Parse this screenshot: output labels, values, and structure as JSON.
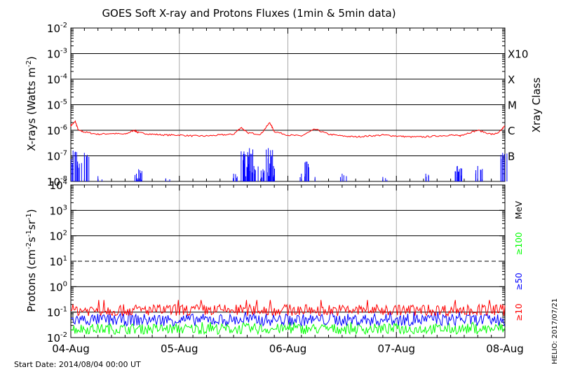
{
  "chart_data": [
    {
      "type": "line",
      "title": "GOES Soft X-ray and Protons Fluxes   (1min & 5min data)",
      "ylabel": {
        "base": "X-rays (Watts m",
        "sup": "-2",
        "tail": ")"
      },
      "y_scale": "log",
      "ylim": [
        1e-08,
        0.01
      ],
      "y_ticks": [
        {
          "value": 1e-08,
          "base": "10",
          "exp": "-8"
        },
        {
          "value": 1e-07,
          "base": "10",
          "exp": "-7"
        },
        {
          "value": 1e-06,
          "base": "10",
          "exp": "-6"
        },
        {
          "value": 1e-05,
          "base": "10",
          "exp": "-5"
        },
        {
          "value": 0.0001,
          "base": "10",
          "exp": "-4"
        },
        {
          "value": 0.001,
          "base": "10",
          "exp": "-3"
        },
        {
          "value": 0.01,
          "base": "10",
          "exp": "-2"
        }
      ],
      "right_axis_title": "Xray Class",
      "right_labels": [
        {
          "label": "X10",
          "value": 0.001
        },
        {
          "label": "X",
          "value": 0.0001
        },
        {
          "label": "M",
          "value": 1e-05
        },
        {
          "label": "C",
          "value": 1e-06
        },
        {
          "label": "B",
          "value": 1e-07
        }
      ],
      "xlim": [
        "2014-08-04",
        "2014-08-08"
      ],
      "x_ticks": [
        "04-Aug",
        "05-Aug",
        "06-Aug",
        "07-Aug",
        "08-Aug"
      ],
      "series": [
        {
          "color": "#ff0000",
          "x": [
            "2014-08-04T00:00",
            "2014-08-04T01:00",
            "2014-08-04T01:40",
            "2014-08-04T03:00",
            "2014-08-04T06:00",
            "2014-08-04T09:00",
            "2014-08-04T12:00",
            "2014-08-04T14:00",
            "2014-08-04T15:00",
            "2014-08-04T18:00",
            "2014-08-04T21:00",
            "2014-08-05T00:00",
            "2014-08-05T03:00",
            "2014-08-05T06:00",
            "2014-08-05T09:00",
            "2014-08-05T12:00",
            "2014-08-05T13:40",
            "2014-08-05T15:00",
            "2014-08-05T18:00",
            "2014-08-05T20:00",
            "2014-08-05T21:00",
            "2014-08-06T00:00",
            "2014-08-06T03:00",
            "2014-08-06T06:00",
            "2014-08-06T09:00",
            "2014-08-06T12:00",
            "2014-08-06T15:00",
            "2014-08-06T18:00",
            "2014-08-06T21:00",
            "2014-08-07T00:00",
            "2014-08-07T03:00",
            "2014-08-07T06:00",
            "2014-08-07T09:00",
            "2014-08-07T12:00",
            "2014-08-07T14:00",
            "2014-08-07T15:00",
            "2014-08-07T18:00",
            "2014-08-07T21:00",
            "2014-08-07T22:30",
            "2014-08-08T00:00"
          ],
          "values": [
            1.5e-06,
            2.2e-06,
            1e-06,
            8.5e-07,
            7e-07,
            7.5e-07,
            7e-07,
            1e-06,
            8e-07,
            7e-07,
            6.5e-07,
            6.5e-07,
            6e-07,
            6e-07,
            6.5e-07,
            7e-07,
            1.3e-06,
            8e-07,
            7e-07,
            2e-06,
            9e-07,
            6.5e-07,
            6e-07,
            1.1e-06,
            7e-07,
            6e-07,
            5.5e-07,
            6e-07,
            6.5e-07,
            6e-07,
            5.5e-07,
            5.5e-07,
            6e-07,
            6.5e-07,
            6e-07,
            7e-07,
            1e-06,
            7e-07,
            7.5e-07,
            1.5e-06
          ]
        },
        {
          "color": "#0000ff",
          "x": [
            "2014-08-04T00:30",
            "2014-08-04T01:30",
            "2014-08-04T03:00",
            "2014-08-04T06:00",
            "2014-08-04T14:30",
            "2014-08-04T15:00",
            "2014-08-04T21:00",
            "2014-08-05T12:00",
            "2014-08-05T13:40",
            "2014-08-05T14:30",
            "2014-08-05T15:30",
            "2014-08-05T16:30",
            "2014-08-05T18:30",
            "2014-08-05T19:40",
            "2014-08-05T20:00",
            "2014-08-06T03:00",
            "2014-08-06T04:00",
            "2014-08-06T06:00",
            "2014-08-06T12:00",
            "2014-08-06T21:00",
            "2014-08-07T06:30",
            "2014-08-07T13:00",
            "2014-08-07T13:30",
            "2014-08-07T18:00",
            "2014-08-07T23:30"
          ],
          "values": [
            1.6e-07,
            6e-08,
            1.3e-07,
            1.6e-08,
            2e-08,
            3e-08,
            1.3e-08,
            2e-08,
            1.5e-07,
            5e-08,
            2e-07,
            4e-08,
            3e-08,
            2e-07,
            5e-08,
            2e-08,
            6e-08,
            1.5e-08,
            2e-08,
            1.5e-08,
            2e-08,
            2.5e-08,
            4e-08,
            4e-08,
            1.3e-07
          ]
        }
      ]
    },
    {
      "type": "line",
      "ylabel": {
        "base": "Protons (cm",
        "sup1": "-2",
        "mid": "s",
        "sup2": "-1",
        "mid2": "sr",
        "sup3": "-1",
        "tail": ")"
      },
      "y_scale": "log",
      "ylim": [
        0.01,
        10000
      ],
      "y_ticks": [
        {
          "value": 0.01,
          "base": "10",
          "exp": "-2"
        },
        {
          "value": 0.1,
          "base": "10",
          "exp": "-1"
        },
        {
          "value": 1,
          "base": "10",
          "exp": "0"
        },
        {
          "value": 10,
          "base": "10",
          "exp": "1"
        },
        {
          "value": 100,
          "base": "10",
          "exp": "2"
        },
        {
          "value": 1000,
          "base": "10",
          "exp": "3"
        },
        {
          "value": 10000,
          "base": "10",
          "exp": "4"
        }
      ],
      "dashed_threshold": 10,
      "right_labels": [
        {
          "label": "MeV",
          "color": "#000000"
        },
        {
          "label": "≥100",
          "color": "#00ff00"
        },
        {
          "label": "≥50",
          "color": "#0000ff"
        },
        {
          "label": "≥10",
          "color": "#ff0000"
        }
      ],
      "x_ticks": [
        "04-Aug",
        "05-Aug",
        "06-Aug",
        "07-Aug",
        "08-Aug"
      ],
      "series": [
        {
          "name": "≥10",
          "color": "#ff0000",
          "typical": 0.12,
          "min": 0.08,
          "max": 0.3
        },
        {
          "name": "≥50",
          "color": "#0000ff",
          "typical": 0.05,
          "min": 0.025,
          "max": 0.1
        },
        {
          "name": "≥100",
          "color": "#00ff00",
          "typical": 0.022,
          "min": 0.012,
          "max": 0.04
        }
      ]
    }
  ],
  "footer": {
    "start_date": "Start Date: 2014/08/04 00:00 UT",
    "credit": "HELIO: 2017/07/21"
  },
  "colors": {
    "xray_long": "#ff0000",
    "xray_short": "#0000ff",
    "p10": "#ff0000",
    "p50": "#0000ff",
    "p100": "#00ff00",
    "day_grid": "#aaaaaa"
  }
}
